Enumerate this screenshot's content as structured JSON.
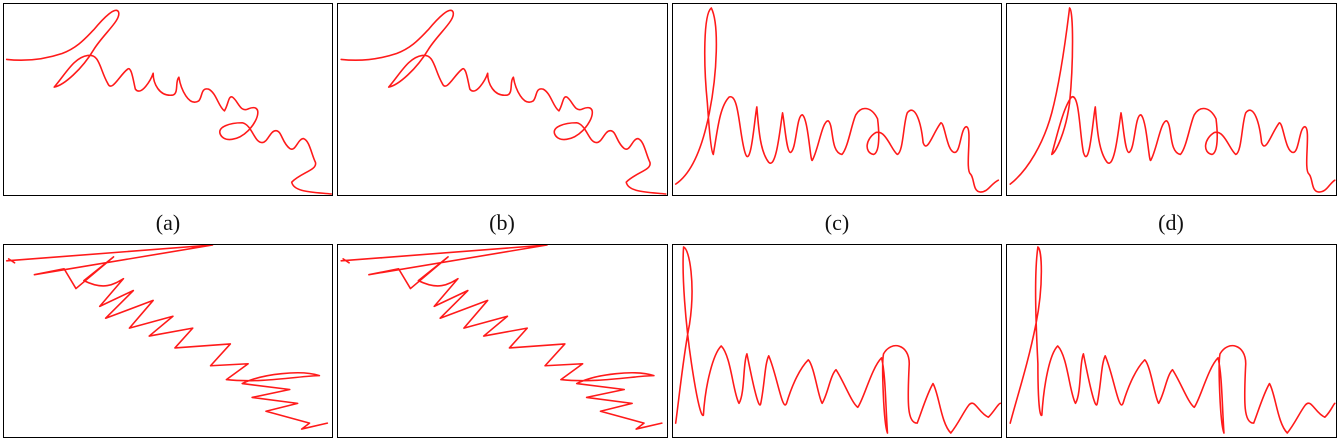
{
  "figure": {
    "captions": [
      "(a)",
      "(b)",
      "(c)",
      "(d)"
    ],
    "handwritten_word": "human",
    "stroke_color": "#ff1a1a",
    "frame_color": "#000000"
  }
}
